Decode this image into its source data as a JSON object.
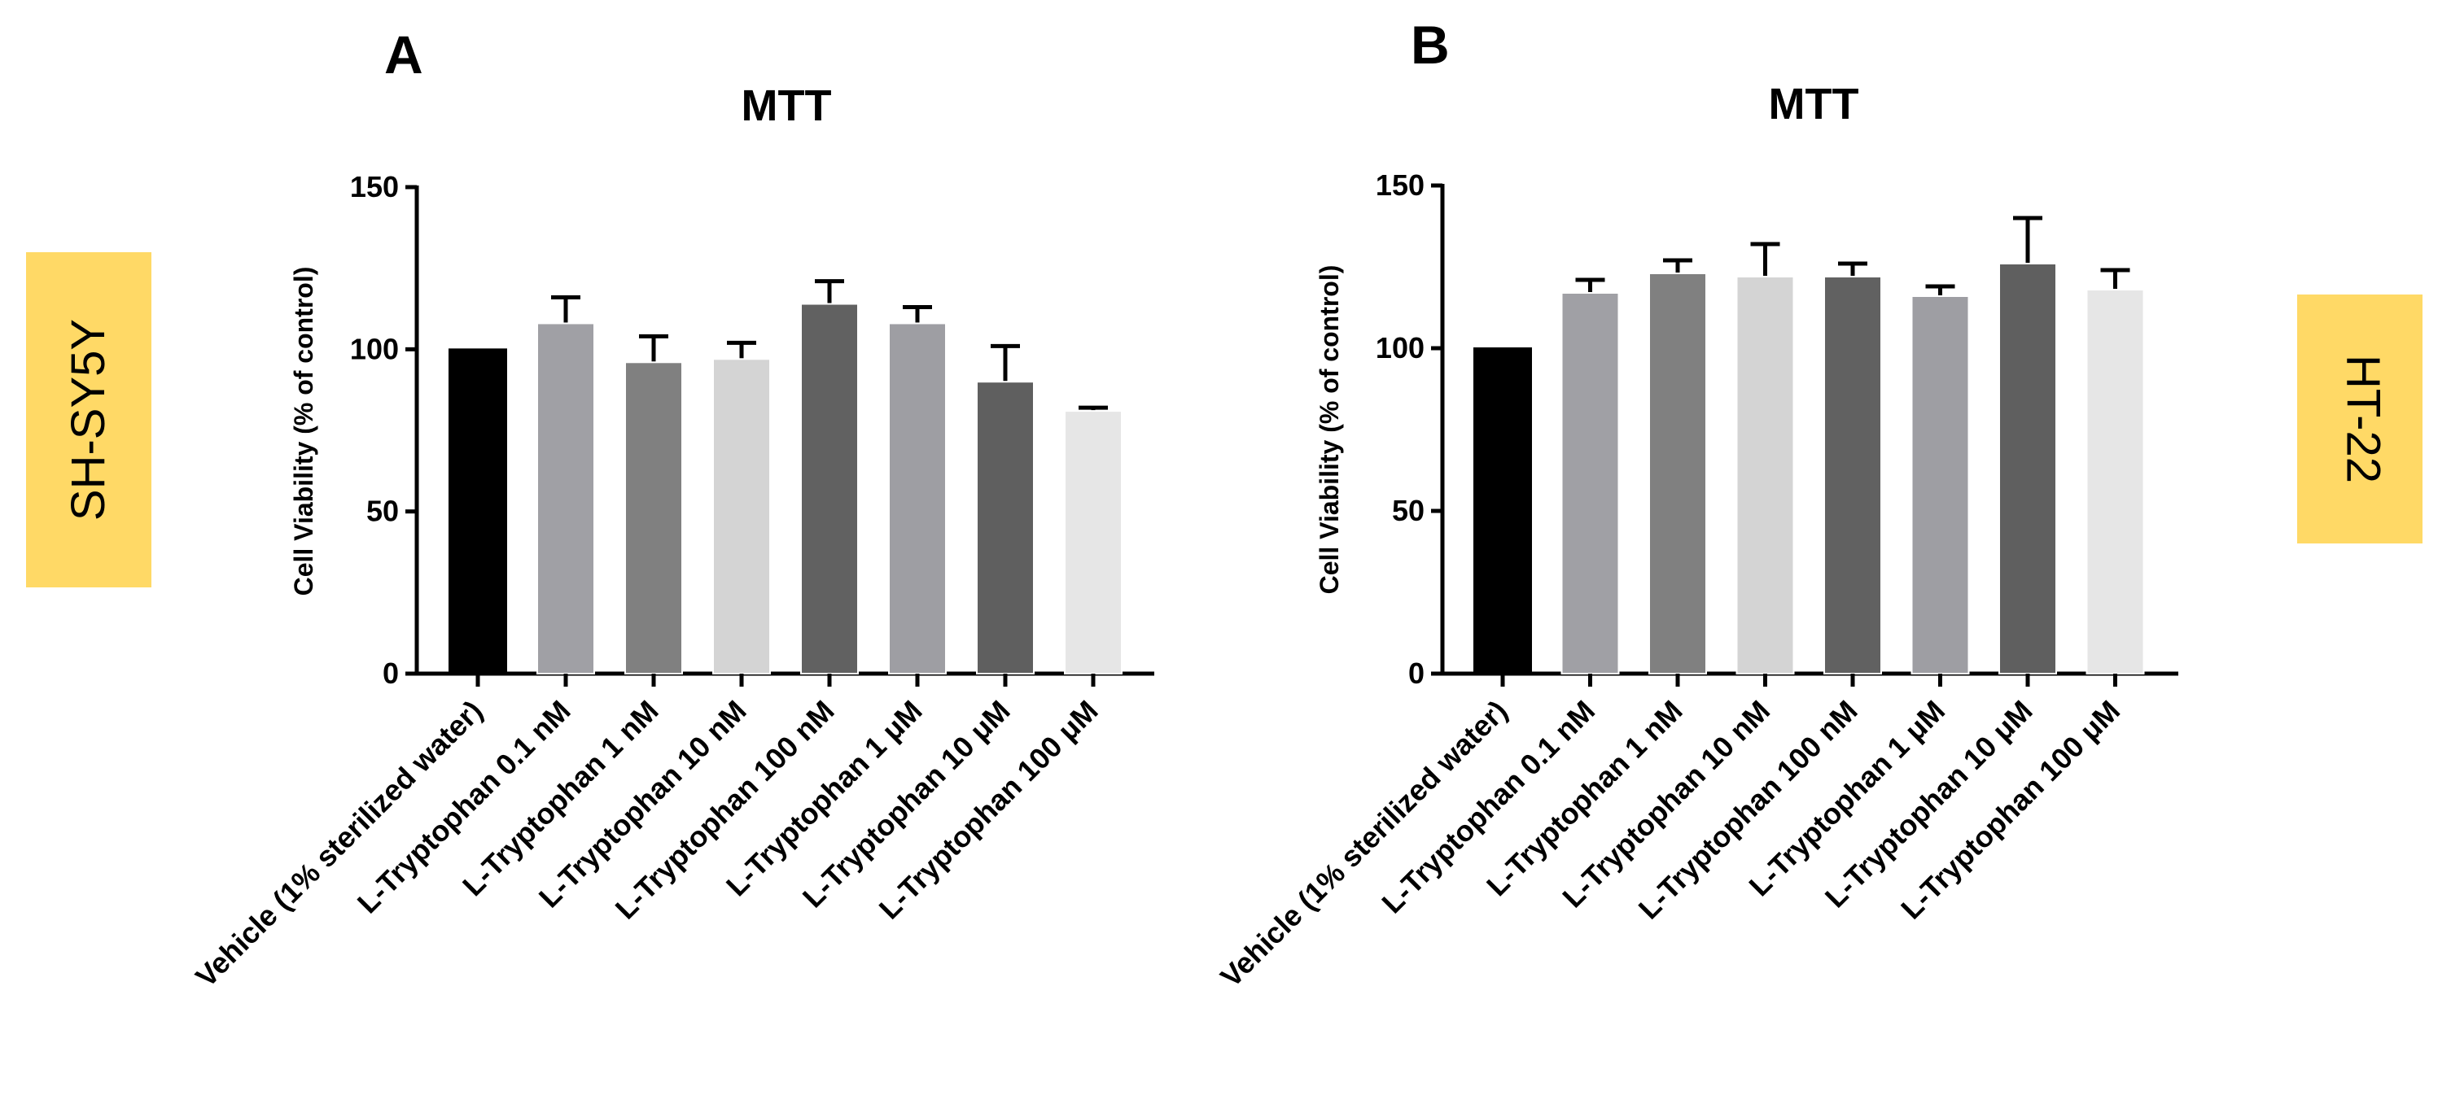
{
  "panels": [
    {
      "letter": "A",
      "cell_line": "SH-SY5Y",
      "label_color": "#FFD966"
    },
    {
      "letter": "B",
      "cell_line": "HT-22",
      "label_color": "#FFD966"
    }
  ],
  "chart_data": [
    {
      "type": "bar",
      "title": "MTT",
      "xlabel": "",
      "ylabel": "Cell Viability (%  of control)",
      "ylim": [
        0,
        150
      ],
      "yticks": [
        0,
        50,
        100,
        150
      ],
      "grid": false,
      "categories": [
        "Vehicle (1% sterilized water)",
        "L-Tryptophan 0.1 nM",
        "L-Tryptophan 1 nM",
        "L-Tryptophan 10 nM",
        "L-Tryptophan 100 nM",
        "L-Tryptophan 1 μM",
        "L-Tryptophan 10 μM",
        "L-Tryptophan 100 μM"
      ],
      "values": [
        100,
        108,
        96,
        97,
        114,
        108,
        90,
        81
      ],
      "errors": [
        0,
        8,
        8,
        5,
        7,
        5,
        11,
        1
      ],
      "colors": [
        "#000000",
        "#a0a0a5",
        "#808080",
        "#d4d4d4",
        "#616161",
        "#9e9ea3",
        "#5f5f5f",
        "#e6e6e6"
      ]
    },
    {
      "type": "bar",
      "title": "MTT",
      "xlabel": "",
      "ylabel": "Cell Viability (%  of control)",
      "ylim": [
        0,
        150
      ],
      "yticks": [
        0,
        50,
        100,
        150
      ],
      "grid": false,
      "categories": [
        "Vehicle (1% sterilized water)",
        "L-Tryptophan 0.1 nM",
        "L-Tryptophan 1 nM",
        "L-Tryptophan 10 nM",
        "L-Tryptophan 100 nM",
        "L-Tryptophan 1 μM",
        "L-Tryptophan 10 μM",
        "L-Tryptophan 100 μM"
      ],
      "values": [
        100,
        117,
        123,
        122,
        122,
        116,
        126,
        118
      ],
      "errors": [
        0,
        4,
        4,
        10,
        4,
        3,
        14,
        6
      ],
      "colors": [
        "#000000",
        "#a0a0a5",
        "#808080",
        "#d4d4d4",
        "#616161",
        "#9e9ea3",
        "#5f5f5f",
        "#e6e6e6"
      ]
    }
  ]
}
